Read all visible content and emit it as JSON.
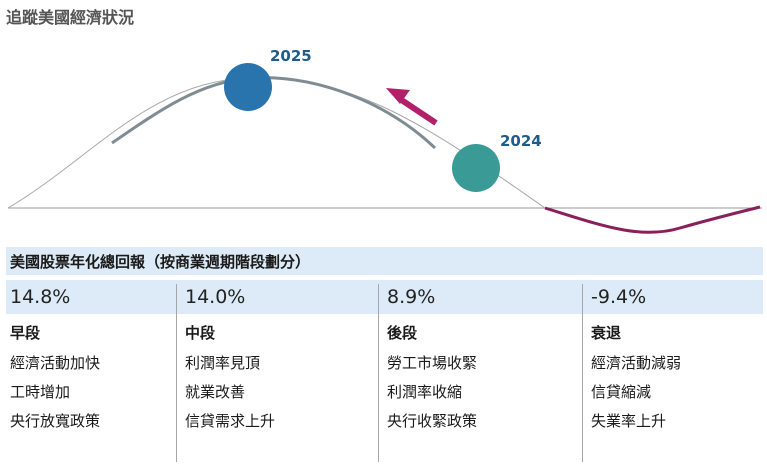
{
  "title": "追蹤美國經濟狀況",
  "diagram": {
    "marker_2025": "2025",
    "marker_2024": "2024",
    "colors": {
      "axis": "#9a9a9a",
      "thin_curve": "#a8a8a8",
      "thick_curve": "#7f8c94",
      "recession_curve": "#8a1f5a",
      "arrow": "#b3206a",
      "marker_2025": "#2a74ad",
      "marker_2024": "#3a9a96",
      "label_color": "#1f5c8a"
    }
  },
  "table": {
    "header": "美國股票年化總回報（按商業週期階段劃分）",
    "columns": [
      {
        "return": "14.8%",
        "phase": "早段",
        "items": [
          "經濟活動加快",
          "工時增加",
          "央行放寬政策"
        ]
      },
      {
        "return": "14.0%",
        "phase": "中段",
        "items": [
          "利潤率見頂",
          "就業改善",
          "信貸需求上升"
        ]
      },
      {
        "return": "8.9%",
        "phase": "後段",
        "items": [
          "勞工市場收緊",
          "利潤率收縮",
          "央行收緊政策"
        ]
      },
      {
        "return": "-9.4%",
        "phase": "衰退",
        "items": [
          "經濟活動減弱",
          "信貸縮減",
          "失業率上升"
        ]
      }
    ]
  }
}
